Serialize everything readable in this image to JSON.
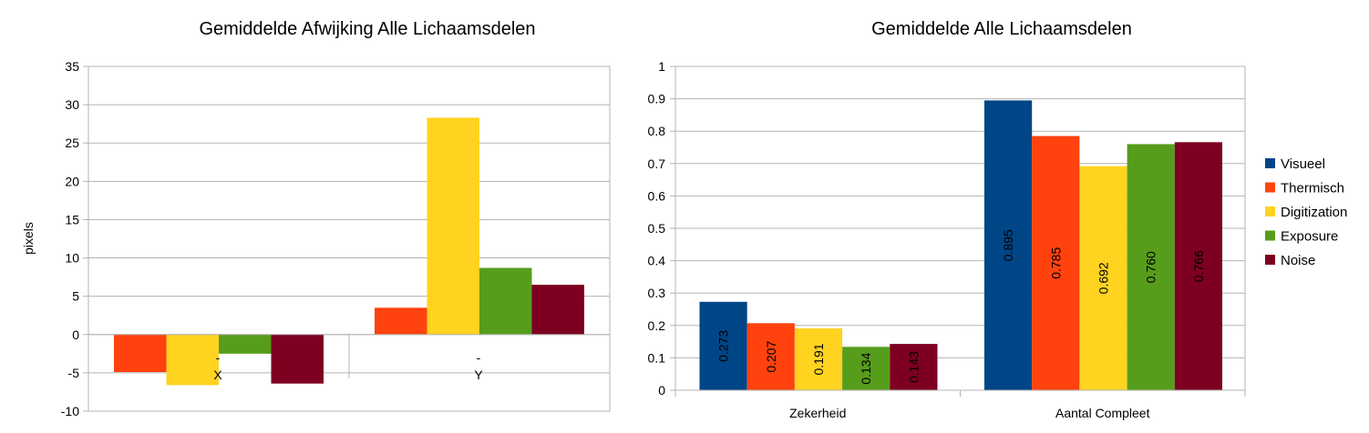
{
  "chart_data": [
    {
      "type": "bar",
      "title": "Gemiddelde Afwijking Alle Lichaamsdelen",
      "ylabel": "pixels",
      "xlabel": "",
      "categories": [
        "X",
        "Y"
      ],
      "category_marks": [
        "-",
        "-"
      ],
      "ylim": [
        -10,
        35
      ],
      "yticks": [
        "-10",
        "-5",
        "0",
        "5",
        "10",
        "15",
        "20",
        "25",
        "30",
        "35"
      ],
      "grid": true,
      "legend": "none",
      "series": [
        {
          "color": "#ff420e",
          "values": [
            -4.9,
            3.5
          ]
        },
        {
          "color": "#ffd320",
          "values": [
            -6.6,
            28.3
          ]
        },
        {
          "color": "#579d1c",
          "values": [
            -2.5,
            8.7
          ]
        },
        {
          "color": "#7e0021",
          "values": [
            -6.4,
            6.5
          ]
        }
      ]
    },
    {
      "type": "bar",
      "title": "Gemiddelde Alle Lichaamsdelen",
      "xlabel": "",
      "ylabel": "",
      "categories": [
        "Zekerheid",
        "Aantal Compleet"
      ],
      "ylim": [
        0,
        1
      ],
      "yticks": [
        "0",
        "0.1",
        "0.2",
        "0.3",
        "0.4",
        "0.5",
        "0.6",
        "0.7",
        "0.8",
        "0.9",
        "1"
      ],
      "grid": true,
      "legend": "right",
      "series": [
        {
          "name": "Visueel",
          "color": "#004586",
          "values": [
            0.273,
            0.895
          ],
          "labels": [
            "0.273",
            "0.895"
          ]
        },
        {
          "name": "Thermisch",
          "color": "#ff420e",
          "values": [
            0.207,
            0.785
          ],
          "labels": [
            "0.207",
            "0.785"
          ]
        },
        {
          "name": "Digitization",
          "color": "#ffd320",
          "values": [
            0.191,
            0.692
          ],
          "labels": [
            "0.191",
            "0.692"
          ]
        },
        {
          "name": "Exposure",
          "color": "#579d1c",
          "values": [
            0.134,
            0.76
          ],
          "labels": [
            "0.134",
            "0.760"
          ]
        },
        {
          "name": "Noise",
          "color": "#7e0021",
          "values": [
            0.143,
            0.766
          ],
          "labels": [
            "0.143",
            "0.766"
          ]
        }
      ]
    }
  ]
}
